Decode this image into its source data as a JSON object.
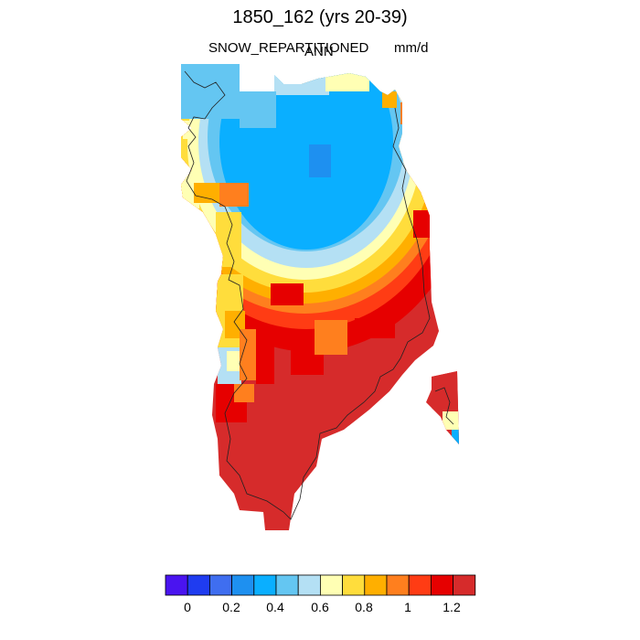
{
  "title": "1850_162 (yrs 20-39)",
  "subtitle_left": "SNOW_REPARTITIONED",
  "subtitle_center": "ANN",
  "subtitle_right": "mm/d",
  "colorbar": {
    "colors": [
      "#4a14f0",
      "#1f3cf0",
      "#3f6ef0",
      "#1e90f0",
      "#0aafff",
      "#64c6f2",
      "#b4e0f4",
      "#ffffb4",
      "#ffdd3c",
      "#ffaf00",
      "#ff7f1e",
      "#ff3c14",
      "#e60000",
      "#d62b2b"
    ],
    "tick_labels": [
      "0",
      "0.2",
      "0.4",
      "0.6",
      "0.8",
      "1",
      "1.2"
    ]
  }
}
